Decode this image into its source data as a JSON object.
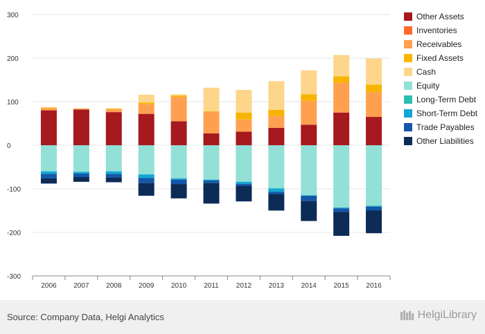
{
  "chart_data": {
    "type": "bar",
    "stacked": true,
    "categories": [
      "2006",
      "2007",
      "2008",
      "2009",
      "2010",
      "2011",
      "2012",
      "2013",
      "2014",
      "2015",
      "2016"
    ],
    "ylim": [
      -300,
      300
    ],
    "yticks": [
      300,
      200,
      100,
      0,
      -100,
      -200,
      -300
    ],
    "grid": true,
    "legend_position": "right",
    "series": [
      {
        "name": "Other Assets",
        "color": "#a6191e",
        "values": [
          80,
          82,
          76,
          72,
          55,
          27,
          31,
          40,
          47,
          75,
          65
        ]
      },
      {
        "name": "Inventories",
        "color": "#ff6a2b",
        "values": [
          0,
          0,
          0,
          0,
          0,
          0,
          0,
          0,
          0,
          0,
          0
        ]
      },
      {
        "name": "Receivables",
        "color": "#ffa050",
        "values": [
          5,
          2,
          7,
          22,
          56,
          50,
          28,
          27,
          55,
          68,
          57
        ]
      },
      {
        "name": "Fixed Assets",
        "color": "#f7b500",
        "values": [
          1,
          0,
          1,
          4,
          3,
          1,
          16,
          14,
          15,
          15,
          17
        ]
      },
      {
        "name": "Cash",
        "color": "#fdd68b",
        "values": [
          2,
          1,
          1,
          18,
          3,
          54,
          52,
          66,
          55,
          49,
          60
        ]
      },
      {
        "name": "Equity",
        "color": "#93e0d6",
        "values": [
          -60,
          -61,
          -60,
          -67,
          -76,
          -79,
          -84,
          -99,
          -115,
          -143,
          -139
        ]
      },
      {
        "name": "Long-Term Debt",
        "color": "#2bbfad",
        "values": [
          0,
          0,
          0,
          0,
          0,
          0,
          0,
          0,
          0,
          0,
          0
        ]
      },
      {
        "name": "Short-Term Debt",
        "color": "#14a6d4",
        "values": [
          -6,
          -4,
          -6,
          -8,
          -3,
          -2,
          -5,
          -8,
          -1,
          -2,
          -2
        ]
      },
      {
        "name": "Trade Payables",
        "color": "#1457a8",
        "values": [
          -10,
          -8,
          -8,
          -12,
          -10,
          -6,
          -4,
          -5,
          -12,
          -8,
          -9
        ]
      },
      {
        "name": "Other Liabilities",
        "color": "#0d2b57",
        "values": [
          -12,
          -11,
          -11,
          -29,
          -33,
          -47,
          -36,
          -38,
          -46,
          -55,
          -52
        ]
      }
    ]
  },
  "footer": {
    "source": "Source: Company Data, Helgi Analytics",
    "logo": "HelgiLibrary"
  }
}
